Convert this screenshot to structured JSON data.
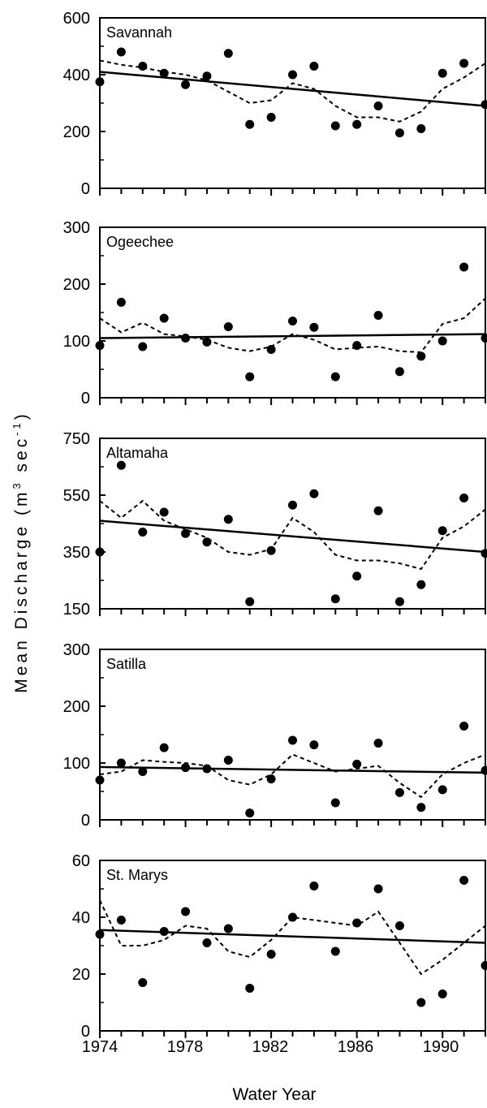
{
  "figure": {
    "ylabel": "Mean Discharge (m",
    "ylabel_sup1": "3",
    "ylabel_mid": " sec",
    "ylabel_sup2": "-1",
    "ylabel_end": ")",
    "xlabel": "Water Year",
    "x_tick_labels": [
      "1974",
      "1978",
      "1982",
      "1986",
      "1990"
    ]
  },
  "chart_data": [
    {
      "type": "scatter",
      "title": "Savannah",
      "x_range": [
        1974,
        1992
      ],
      "ylim": [
        0,
        600
      ],
      "y_ticks": [
        0,
        200,
        400,
        600
      ],
      "x": [
        1974,
        1975,
        1976,
        1977,
        1978,
        1979,
        1980,
        1981,
        1982,
        1983,
        1984,
        1985,
        1986,
        1987,
        1988,
        1989,
        1990,
        1991,
        1992
      ],
      "observed": [
        375,
        480,
        430,
        405,
        365,
        395,
        475,
        225,
        250,
        400,
        430,
        220,
        225,
        290,
        195,
        210,
        405,
        440,
        295
      ],
      "trend_line": {
        "x": [
          1974,
          1992
        ],
        "y": [
          410,
          290
        ]
      },
      "smoothed": [
        450,
        435,
        425,
        410,
        400,
        380,
        340,
        300,
        310,
        370,
        350,
        290,
        250,
        250,
        235,
        270,
        350,
        390,
        440
      ]
    },
    {
      "type": "scatter",
      "title": "Ogeechee",
      "x_range": [
        1974,
        1992
      ],
      "ylim": [
        0,
        300
      ],
      "y_ticks": [
        0,
        100,
        200,
        300
      ],
      "x": [
        1974,
        1975,
        1976,
        1977,
        1978,
        1979,
        1980,
        1981,
        1982,
        1983,
        1984,
        1985,
        1986,
        1987,
        1988,
        1989,
        1990,
        1991,
        1992
      ],
      "observed": [
        92,
        168,
        90,
        140,
        105,
        98,
        125,
        37,
        85,
        135,
        124,
        37,
        92,
        145,
        46,
        73,
        100,
        230,
        105
      ],
      "trend_line": {
        "x": [
          1974,
          1992
        ],
        "y": [
          105,
          112
        ]
      },
      "smoothed": [
        140,
        115,
        132,
        112,
        108,
        102,
        88,
        82,
        90,
        112,
        102,
        85,
        88,
        90,
        82,
        80,
        130,
        140,
        175
      ]
    },
    {
      "type": "scatter",
      "title": "Altamaha",
      "x_range": [
        1974,
        1992
      ],
      "ylim": [
        150,
        750
      ],
      "y_ticks": [
        150,
        350,
        550,
        750
      ],
      "x": [
        1974,
        1975,
        1976,
        1977,
        1978,
        1979,
        1980,
        1981,
        1982,
        1983,
        1984,
        1985,
        1986,
        1987,
        1988,
        1989,
        1990,
        1991,
        1992
      ],
      "observed": [
        350,
        655,
        420,
        490,
        415,
        385,
        465,
        175,
        355,
        515,
        555,
        185,
        265,
        495,
        175,
        235,
        425,
        540,
        345
      ],
      "trend_line": {
        "x": [
          1974,
          1992
        ],
        "y": [
          460,
          350
        ]
      },
      "smoothed": [
        530,
        470,
        530,
        460,
        430,
        400,
        350,
        340,
        360,
        470,
        420,
        340,
        320,
        320,
        310,
        290,
        400,
        440,
        500
      ]
    },
    {
      "type": "scatter",
      "title": "Satilla",
      "x_range": [
        1974,
        1992
      ],
      "ylim": [
        0,
        300
      ],
      "y_ticks": [
        0,
        100,
        200,
        300
      ],
      "x": [
        1974,
        1975,
        1976,
        1977,
        1978,
        1979,
        1980,
        1981,
        1982,
        1983,
        1984,
        1985,
        1986,
        1987,
        1988,
        1989,
        1990,
        1991,
        1992
      ],
      "observed": [
        70,
        100,
        85,
        127,
        92,
        90,
        105,
        12,
        72,
        140,
        132,
        30,
        98,
        135,
        48,
        22,
        53,
        165,
        87
      ],
      "trend_line": {
        "x": [
          1974,
          1992
        ],
        "y": [
          93,
          83
        ]
      },
      "smoothed": [
        80,
        85,
        105,
        102,
        100,
        95,
        70,
        62,
        80,
        115,
        100,
        85,
        90,
        95,
        65,
        40,
        80,
        100,
        115
      ]
    },
    {
      "type": "scatter",
      "title": "St. Marys",
      "x_range": [
        1974,
        1992
      ],
      "ylim": [
        0,
        60
      ],
      "y_ticks": [
        0,
        20,
        40,
        60
      ],
      "x": [
        1974,
        1975,
        1976,
        1977,
        1978,
        1979,
        1980,
        1981,
        1982,
        1983,
        1984,
        1985,
        1986,
        1987,
        1988,
        1989,
        1990,
        1991,
        1992
      ],
      "observed": [
        34,
        39,
        17,
        35,
        42,
        31,
        36,
        15,
        27,
        40,
        51,
        28,
        38,
        50,
        37,
        10,
        13,
        53,
        23
      ],
      "trend_line": {
        "x": [
          1974,
          1992
        ],
        "y": [
          35.5,
          31
        ]
      },
      "smoothed": [
        46,
        30,
        30,
        32,
        37,
        36,
        28,
        26,
        32,
        40,
        39,
        38,
        37,
        42,
        31,
        20,
        25,
        31,
        37
      ]
    }
  ]
}
